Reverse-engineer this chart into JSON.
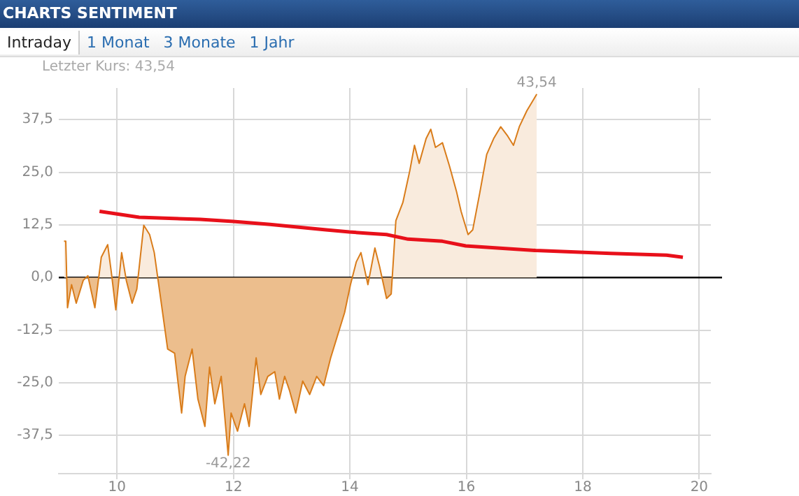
{
  "chart_data": {
    "type": "area",
    "title": "CHARTS SENTIMENT",
    "subtitle": "Letzter Kurs: 43,54",
    "annotations": [
      "Intraday",
      "1 Monat",
      "3 Monate",
      "1 Jahr",
      {
        "text": "43,54",
        "x": 17.21,
        "y": 43.54
      },
      {
        "text": "-42,22",
        "x": 11.91,
        "y": -42.22
      }
    ],
    "series": [
      {
        "color": "#d97c1a",
        "x": [
          9.09,
          9.12,
          9.15,
          9.22,
          9.3,
          9.42,
          9.5,
          9.62,
          9.73,
          9.84,
          9.9,
          9.98,
          10.08,
          10.16,
          10.26,
          10.34,
          10.46,
          10.56,
          10.64,
          10.75,
          10.87,
          10.99,
          11.11,
          11.17,
          11.29,
          11.39,
          11.51,
          11.59,
          11.68,
          11.79,
          11.91,
          11.96,
          12.07,
          12.19,
          12.27,
          12.39,
          12.47,
          12.59,
          12.71,
          12.79,
          12.88,
          12.96,
          13.07,
          13.19,
          13.31,
          13.43,
          13.55,
          13.67,
          13.79,
          13.91,
          14.01,
          14.11,
          14.19,
          14.31,
          14.43,
          14.51,
          14.63,
          14.71,
          14.79,
          14.91,
          15.03,
          15.11,
          15.19,
          15.31,
          15.39,
          15.47,
          15.59,
          15.71,
          15.83,
          15.91,
          16.03,
          16.11,
          16.23,
          16.35,
          16.47,
          16.59,
          16.71,
          16.81,
          16.91,
          17.04,
          17.13,
          17.21
        ],
        "values": [
          8.6,
          8.6,
          -7.2,
          -1.7,
          -6.1,
          -0.7,
          0.4,
          -7.2,
          4.8,
          7.8,
          1.5,
          -7.7,
          5.9,
          -0.7,
          -6.1,
          -2.8,
          12.4,
          10.2,
          5.9,
          -5.0,
          -17.0,
          -18.0,
          -32.2,
          -23.5,
          -17.0,
          -28.9,
          -35.4,
          -21.3,
          -30.0,
          -23.5,
          -42.22,
          -32.2,
          -36.5,
          -30.0,
          -35.4,
          -19.1,
          -27.8,
          -23.5,
          -22.4,
          -28.9,
          -23.5,
          -26.7,
          -32.2,
          -24.6,
          -27.8,
          -23.5,
          -25.7,
          -19.1,
          -13.7,
          -8.3,
          -1.7,
          3.7,
          5.9,
          -1.7,
          7.0,
          2.6,
          -5.0,
          -3.9,
          13.5,
          17.8,
          25.4,
          31.4,
          27.1,
          33.0,
          35.2,
          30.9,
          32.0,
          26.5,
          20.5,
          15.7,
          10.2,
          11.3,
          20.0,
          29.2,
          33.0,
          35.8,
          33.6,
          31.4,
          35.8,
          39.6,
          41.7,
          43.54
        ]
      },
      {
        "type": "line",
        "color": "#e8101a",
        "x": [
          9.7,
          10.38,
          11.43,
          12.0,
          12.63,
          13.59,
          13.99,
          14.31,
          14.63,
          15.0,
          15.59,
          15.99,
          17.19,
          18.48,
          19.44,
          19.72
        ],
        "values": [
          15.7,
          14.3,
          13.8,
          13.3,
          12.6,
          11.3,
          10.8,
          10.5,
          10.2,
          9.1,
          8.6,
          7.5,
          6.4,
          5.7,
          5.3,
          4.8
        ]
      }
    ],
    "xlim": [
      9,
      20.2
    ],
    "xticks": [
      10,
      12,
      14,
      16,
      18,
      20
    ],
    "ylim": [
      -46.6,
      45
    ],
    "yticks": [
      {
        "value": -37.5,
        "label": "-37,5"
      },
      {
        "value": -25,
        "label": "-25,0"
      },
      {
        "value": -12.5,
        "label": "-12,5"
      },
      {
        "value": 0,
        "label": "0,0"
      },
      {
        "value": 12.5,
        "label": "12,5"
      },
      {
        "value": 25,
        "label": "25,0"
      },
      {
        "value": 37.5,
        "label": "37,5"
      }
    ],
    "ref_lines": [
      {
        "axis": "y",
        "value": 0,
        "color": "#000000"
      }
    ],
    "grid": true,
    "legend": false
  }
}
